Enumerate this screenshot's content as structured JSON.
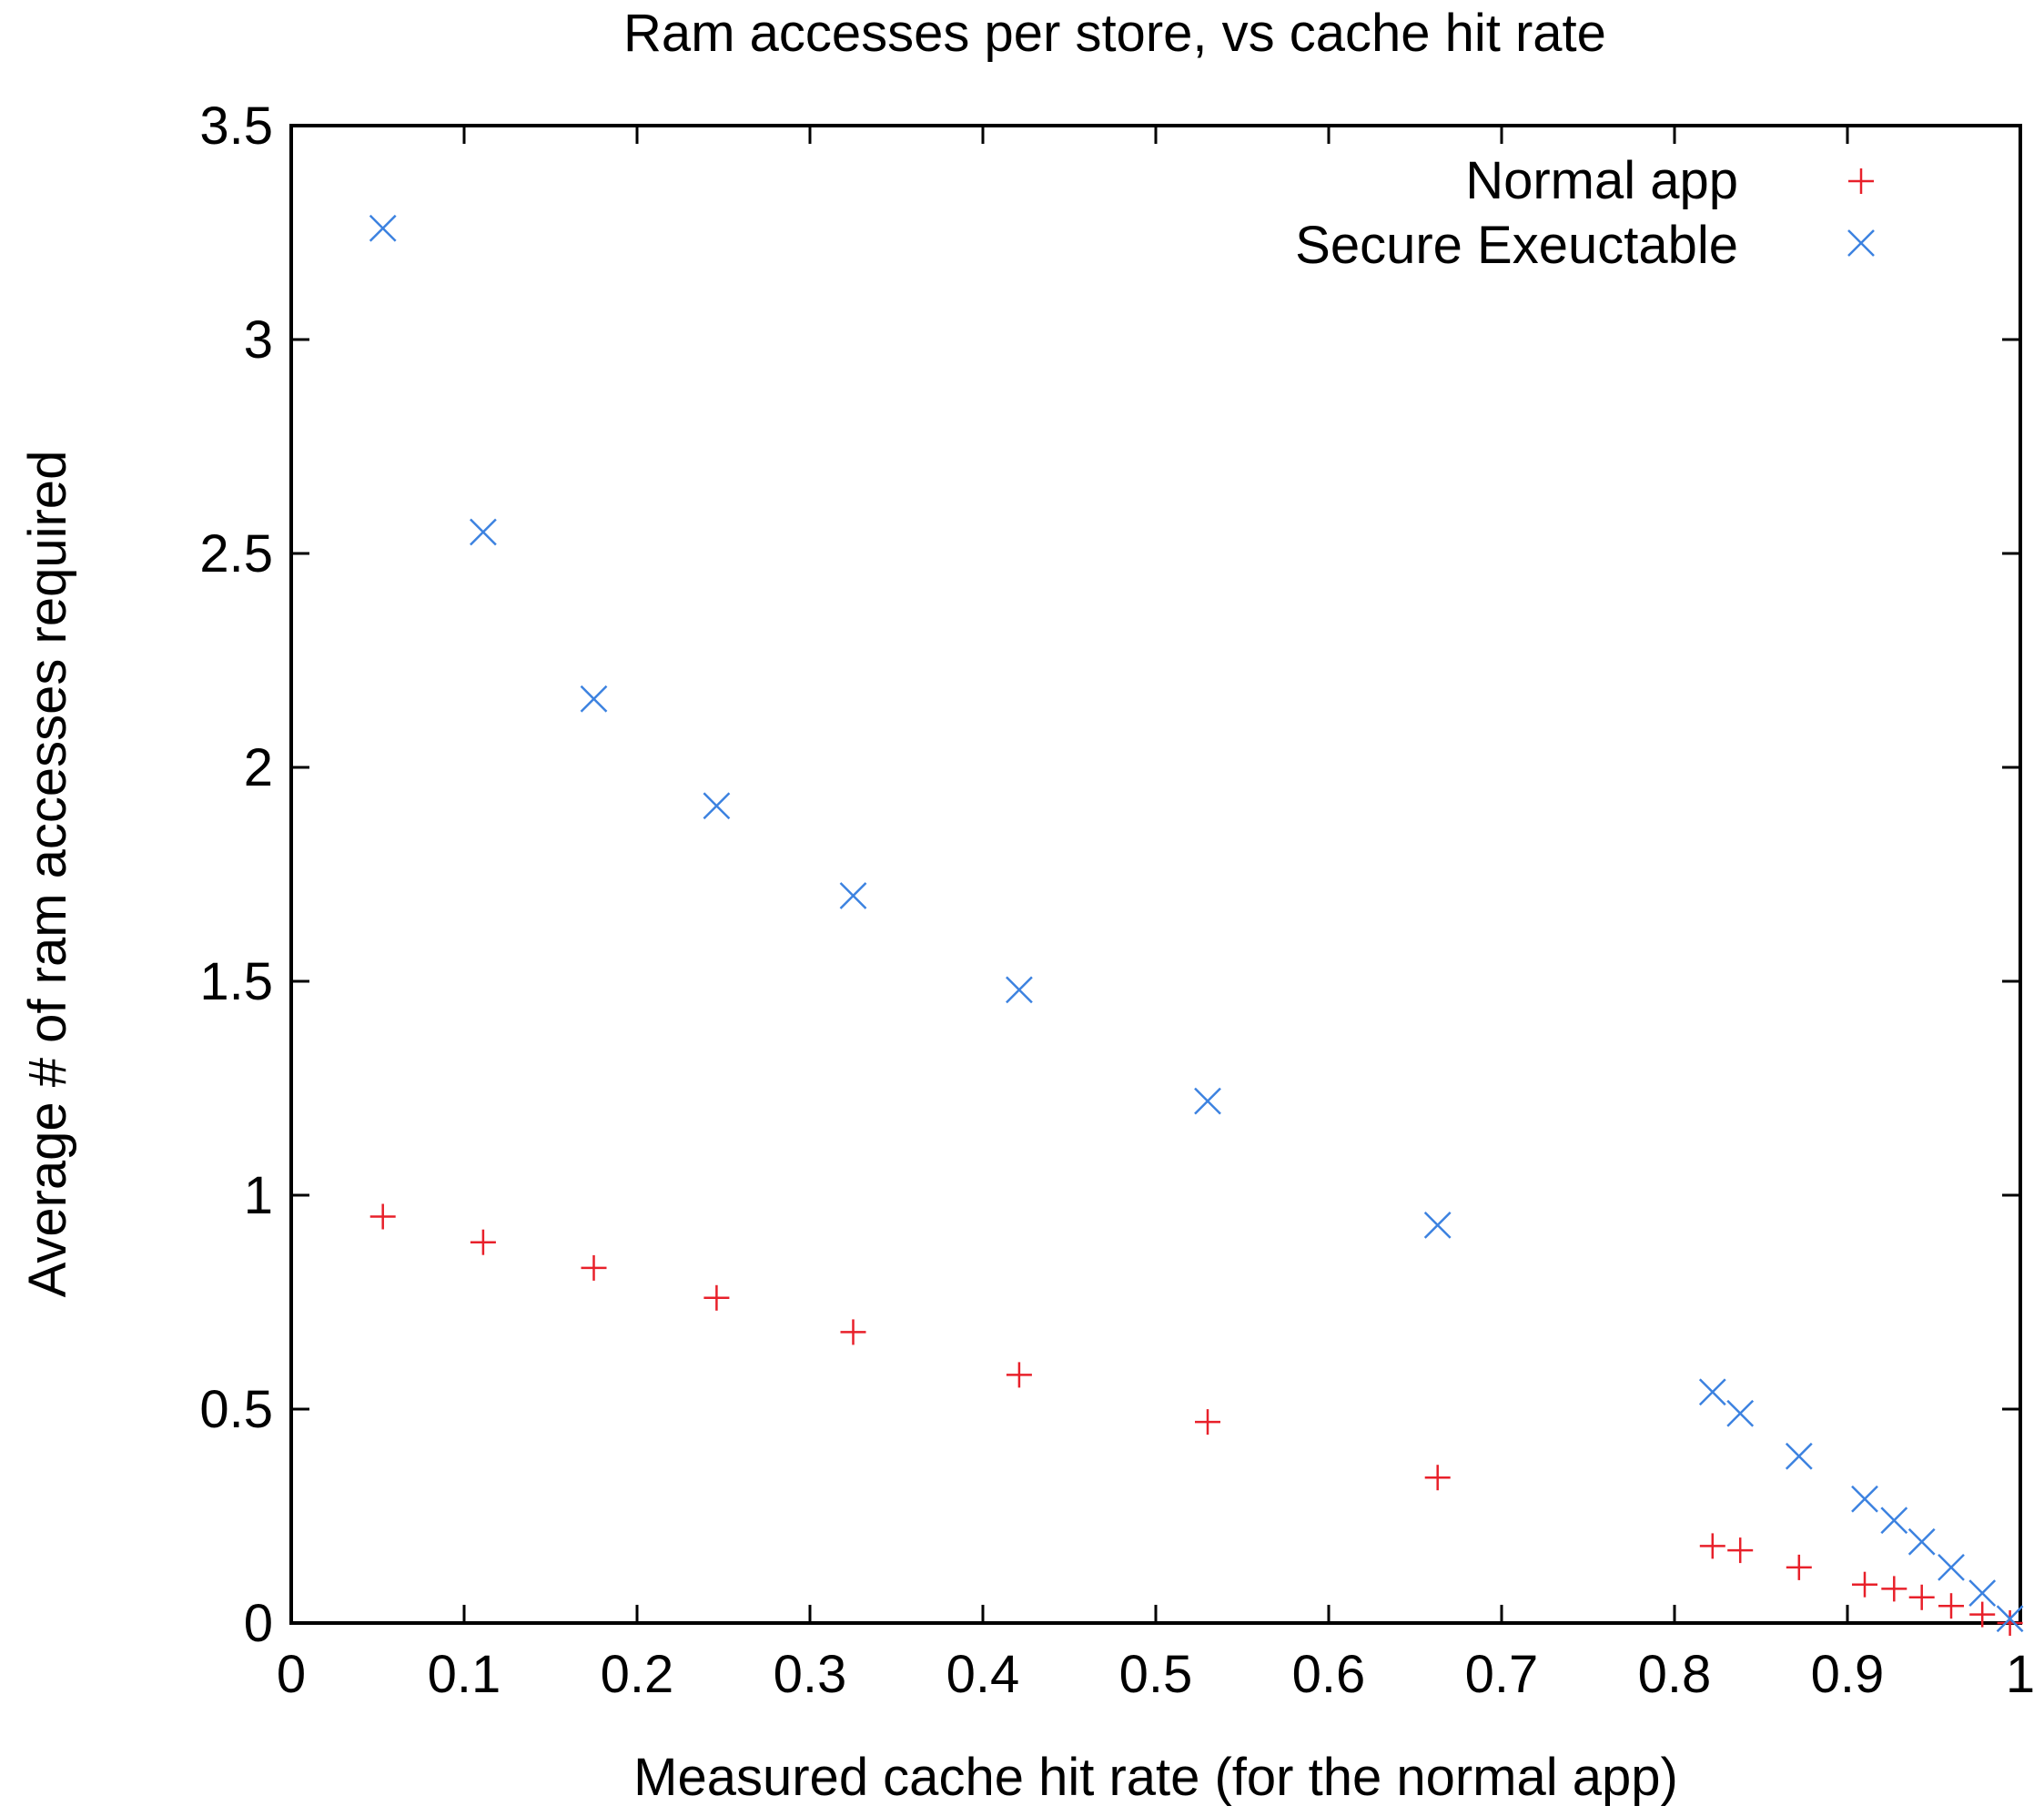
{
  "chart_data": {
    "type": "scatter",
    "title": "Ram accesses per store, vs cache hit rate",
    "xlabel": "Measured cache hit rate (for the normal app)",
    "ylabel": "Average # of ram accesses required",
    "xlim": [
      0,
      1
    ],
    "ylim": [
      0,
      3.5
    ],
    "xticks": [
      "0",
      "0.1",
      "0.2",
      "0.3",
      "0.4",
      "0.5",
      "0.6",
      "0.7",
      "0.8",
      "0.9",
      "1"
    ],
    "yticks": [
      "0",
      "0.5",
      "1",
      "1.5",
      "2",
      "2.5",
      "3",
      "3.5"
    ],
    "grid": false,
    "legend_position": "top-right",
    "series": [
      {
        "name": "Normal app",
        "marker": "plus",
        "color": "#e8202a",
        "x": [
          0.053,
          0.111,
          0.175,
          0.246,
          0.325,
          0.421,
          0.53,
          0.663,
          0.822,
          0.838,
          0.872,
          0.91,
          0.927,
          0.943,
          0.96,
          0.978,
          0.994
        ],
        "y": [
          0.95,
          0.89,
          0.83,
          0.76,
          0.68,
          0.58,
          0.47,
          0.34,
          0.18,
          0.17,
          0.13,
          0.09,
          0.08,
          0.06,
          0.04,
          0.02,
          0.0
        ]
      },
      {
        "name": "Secure Exeuctable",
        "marker": "cross",
        "color": "#3c82e0",
        "x": [
          0.053,
          0.111,
          0.175,
          0.246,
          0.325,
          0.421,
          0.53,
          0.663,
          0.822,
          0.838,
          0.872,
          0.91,
          0.927,
          0.943,
          0.96,
          0.978,
          0.994
        ],
        "y": [
          3.26,
          2.55,
          2.16,
          1.91,
          1.7,
          1.48,
          1.22,
          0.93,
          0.54,
          0.49,
          0.39,
          0.29,
          0.24,
          0.19,
          0.13,
          0.07,
          0.01
        ]
      }
    ]
  }
}
